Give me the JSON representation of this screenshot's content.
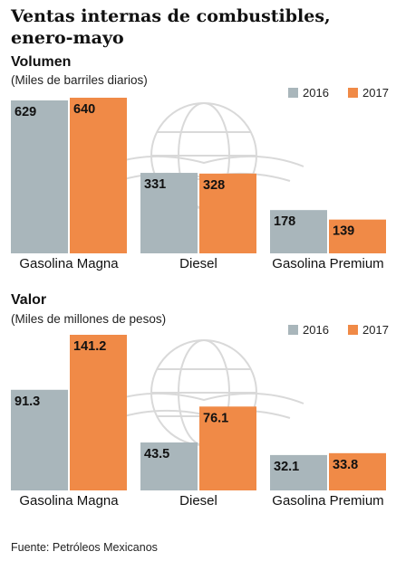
{
  "title": "Ventas internas de combustibles, enero-mayo",
  "source": "Fuente: Petróleos Mexicanos",
  "colors": {
    "s2016": "#a9b6bb",
    "s2017": "#f08a47",
    "watermark": "#d9d9d9"
  },
  "chart_data": [
    {
      "type": "bar",
      "title": "Volumen",
      "subtitle": "(Miles de barriles diarios)",
      "categories": [
        "Gasolina Magna",
        "Diesel",
        "Gasolina Premium"
      ],
      "series": [
        {
          "name": "2016",
          "values": [
            629,
            331,
            178
          ],
          "labels": [
            "629",
            "331",
            "178"
          ]
        },
        {
          "name": "2017",
          "values": [
            640,
            328,
            139
          ],
          "labels": [
            "640",
            "328",
            "139"
          ]
        }
      ],
      "ylim": [
        0,
        640
      ],
      "legend": "top-right",
      "grid": false
    },
    {
      "type": "bar",
      "title": "Valor",
      "subtitle": "(Miles de millones de pesos)",
      "categories": [
        "Gasolina Magna",
        "Diesel",
        "Gasolina Premium"
      ],
      "series": [
        {
          "name": "2016",
          "values": [
            91.3,
            43.5,
            32.1
          ],
          "labels": [
            "91.3",
            "43.5",
            "32.1"
          ]
        },
        {
          "name": "2017",
          "values": [
            141.2,
            76.1,
            33.8
          ],
          "labels": [
            "141.2",
            "76.1",
            "33.8"
          ]
        }
      ],
      "ylim": [
        0,
        141.2
      ],
      "legend": "top-right",
      "grid": false
    }
  ]
}
